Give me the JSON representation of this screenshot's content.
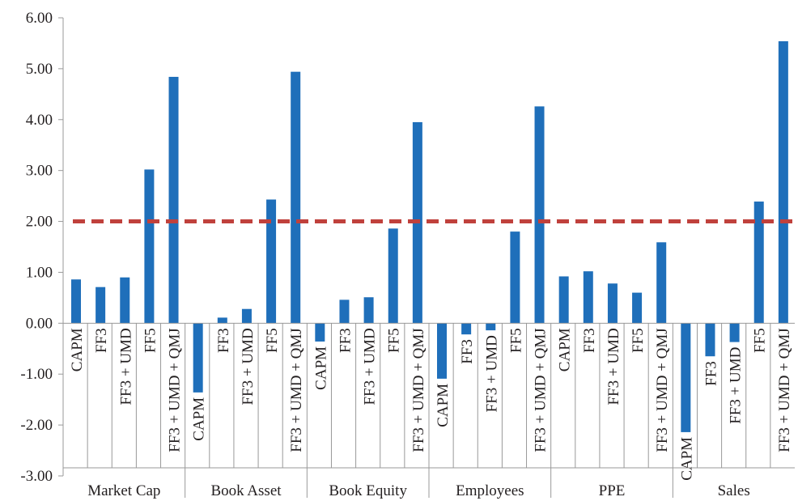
{
  "chart_data": {
    "type": "bar",
    "groups": [
      "Market Cap",
      "Book Asset",
      "Book Equity",
      "Employees",
      "PPE",
      "Sales"
    ],
    "models": [
      "CAPM",
      "FF3",
      "FF3 + UMD",
      "FF5",
      "FF3 + UMD + QMJ"
    ],
    "series": [
      {
        "group": "Market Cap",
        "values": [
          0.86,
          0.71,
          0.9,
          3.02,
          4.84
        ]
      },
      {
        "group": "Book Asset",
        "values": [
          -1.36,
          0.11,
          0.28,
          2.43,
          4.94
        ]
      },
      {
        "group": "Book Equity",
        "values": [
          -0.36,
          0.46,
          0.51,
          1.86,
          3.95
        ]
      },
      {
        "group": "Employees",
        "values": [
          -1.09,
          -0.22,
          -0.14,
          1.8,
          4.26
        ]
      },
      {
        "group": "PPE",
        "values": [
          0.92,
          1.02,
          0.78,
          0.6,
          1.59
        ]
      },
      {
        "group": "Sales",
        "values": [
          -2.14,
          -0.65,
          -0.37,
          2.39,
          5.54
        ]
      }
    ],
    "ylim": [
      -3.0,
      6.0
    ],
    "yticks": [
      "6.00",
      "5.00",
      "4.00",
      "3.00",
      "2.00",
      "1.00",
      "0.00",
      "-1.00",
      "-2.00",
      "-3.00"
    ],
    "reference_line": 2.0,
    "bar_color": "#1f6fba",
    "reference_color": "#c0413c",
    "axis_color": "#999999",
    "grid": false
  }
}
